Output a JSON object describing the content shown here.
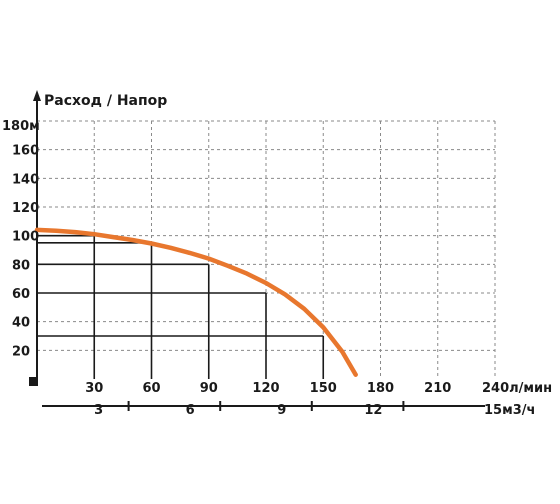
{
  "chart_data": {
    "type": "line",
    "title": "Расход / Напор",
    "y_top_label": "180м",
    "yticks": [
      20,
      40,
      60,
      80,
      100,
      120,
      140,
      160
    ],
    "ylim": [
      0,
      180
    ],
    "xticks": [
      30,
      60,
      90,
      120,
      150,
      180,
      210
    ],
    "x_end_label": "240л/мин",
    "xlim": [
      0,
      240
    ],
    "x2ticks": [
      "3",
      "6",
      "9",
      "12"
    ],
    "x2_end_label": "15м3/ч",
    "grid": true,
    "series": [
      {
        "color": "#e8772e",
        "x": [
          0,
          10,
          20,
          30,
          40,
          50,
          60,
          70,
          80,
          90,
          100,
          110,
          120,
          130,
          140,
          150,
          160,
          167
        ],
        "y": [
          104,
          103.5,
          102.5,
          101,
          99,
          97,
          94.5,
          91.5,
          88,
          84,
          79,
          73.5,
          67,
          59,
          49,
          36,
          19,
          3
        ]
      }
    ],
    "guide_points": [
      {
        "x": 30,
        "y": 100
      },
      {
        "x": 60,
        "y": 95
      },
      {
        "x": 90,
        "y": 80
      },
      {
        "x": 120,
        "y": 60
      },
      {
        "x": 150,
        "y": 30
      }
    ]
  }
}
